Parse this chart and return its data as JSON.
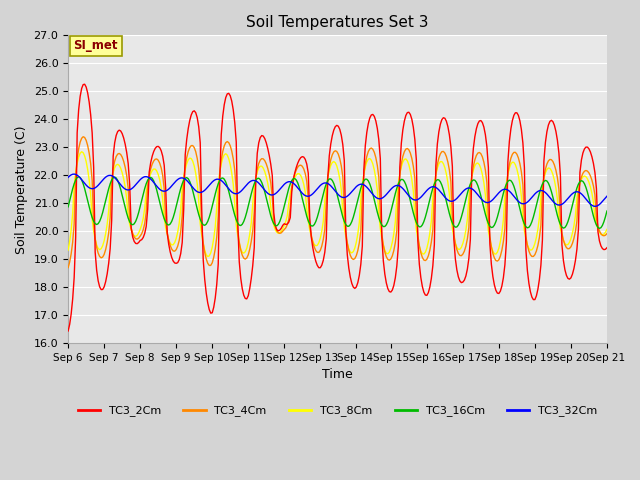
{
  "title": "Soil Temperatures Set 3",
  "xlabel": "Time",
  "ylabel": "Soil Temperature (C)",
  "ylim": [
    16.0,
    27.0
  ],
  "yticks": [
    16.0,
    17.0,
    18.0,
    19.0,
    20.0,
    21.0,
    22.0,
    23.0,
    24.0,
    25.0,
    26.0,
    27.0
  ],
  "legend_entries": [
    "TC3_2Cm",
    "TC3_4Cm",
    "TC3_8Cm",
    "TC3_16Cm",
    "TC3_32Cm"
  ],
  "line_colors": [
    "#ff0000",
    "#ff8800",
    "#ffff00",
    "#00bb00",
    "#0000ff"
  ],
  "annotation_text": "SI_met",
  "xtick_labels": [
    "Sep 6",
    "Sep 7",
    "Sep 8",
    "Sep 9",
    "Sep 10",
    "Sep 11",
    "Sep 12",
    "Sep 13",
    "Sep 14",
    "Sep 15",
    "Sep 16",
    "Sep 17",
    "Sep 18",
    "Sep 19",
    "Sep 20",
    "Sep 21"
  ],
  "fig_bg": "#d4d4d4",
  "plot_bg": "#e8e8e8",
  "grid_color": "#ffffff",
  "figsize": [
    6.4,
    4.8
  ],
  "dpi": 100
}
